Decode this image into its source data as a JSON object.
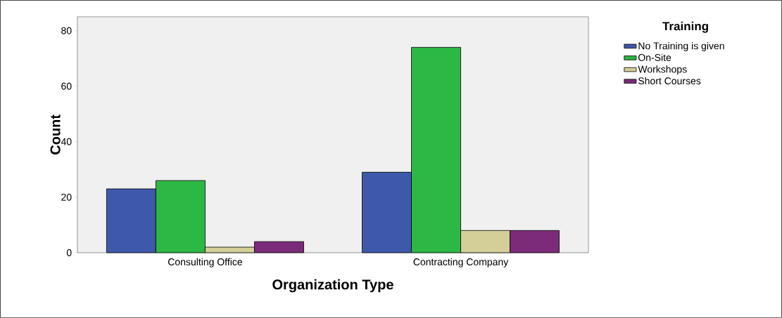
{
  "chart_data": {
    "type": "bar",
    "xlabel": "Organization Type",
    "ylabel": "Count",
    "legend_title": "Training",
    "categories": [
      "Consulting Office",
      "Contracting Company"
    ],
    "series": [
      {
        "name": "No Training is given",
        "color": "#3e58ac",
        "values": [
          23,
          29
        ]
      },
      {
        "name": "On-Site",
        "color": "#2db744",
        "values": [
          26,
          74
        ]
      },
      {
        "name": "Workshops",
        "color": "#d4cf98",
        "values": [
          2,
          8
        ]
      },
      {
        "name": "Short Courses",
        "color": "#7c2a7a",
        "values": [
          4,
          8
        ]
      }
    ],
    "ylim": [
      0,
      85
    ],
    "yticks": [
      0,
      20,
      40,
      60,
      80
    ],
    "legend": "right",
    "grid": false
  }
}
